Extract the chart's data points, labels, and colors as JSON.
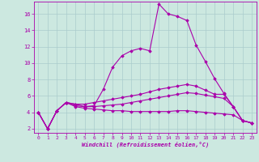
{
  "xlabel": "Windchill (Refroidissement éolien,°C)",
  "background_color": "#cce8e0",
  "grid_color": "#aacccc",
  "line_color": "#aa00aa",
  "xlim": [
    -0.5,
    23.5
  ],
  "ylim": [
    1.5,
    17.5
  ],
  "yticks": [
    2,
    4,
    6,
    8,
    10,
    12,
    14,
    16
  ],
  "xticks": [
    0,
    1,
    2,
    3,
    4,
    5,
    6,
    7,
    8,
    9,
    10,
    11,
    12,
    13,
    14,
    15,
    16,
    17,
    18,
    19,
    20,
    21,
    22,
    23
  ],
  "series": [
    [
      4.0,
      2.0,
      4.2,
      5.2,
      5.0,
      4.7,
      4.8,
      6.8,
      9.5,
      10.9,
      11.5,
      11.8,
      11.5,
      17.2,
      16.0,
      15.7,
      15.2,
      12.2,
      10.2,
      8.1,
      6.3,
      4.7,
      3.0,
      2.7
    ],
    [
      4.0,
      2.0,
      4.2,
      5.2,
      5.0,
      5.0,
      5.2,
      5.4,
      5.6,
      5.8,
      6.0,
      6.2,
      6.5,
      6.8,
      7.0,
      7.2,
      7.4,
      7.2,
      6.7,
      6.2,
      6.2,
      4.7,
      3.0,
      2.7
    ],
    [
      4.0,
      2.0,
      4.2,
      5.2,
      4.8,
      4.7,
      4.7,
      4.8,
      4.9,
      5.0,
      5.2,
      5.4,
      5.6,
      5.8,
      6.0,
      6.2,
      6.4,
      6.3,
      6.1,
      5.9,
      5.7,
      4.7,
      3.0,
      2.7
    ],
    [
      4.0,
      2.0,
      4.2,
      5.2,
      4.7,
      4.5,
      4.4,
      4.3,
      4.2,
      4.2,
      4.1,
      4.1,
      4.1,
      4.1,
      4.1,
      4.2,
      4.2,
      4.1,
      4.0,
      3.9,
      3.8,
      3.7,
      3.0,
      2.7
    ]
  ]
}
